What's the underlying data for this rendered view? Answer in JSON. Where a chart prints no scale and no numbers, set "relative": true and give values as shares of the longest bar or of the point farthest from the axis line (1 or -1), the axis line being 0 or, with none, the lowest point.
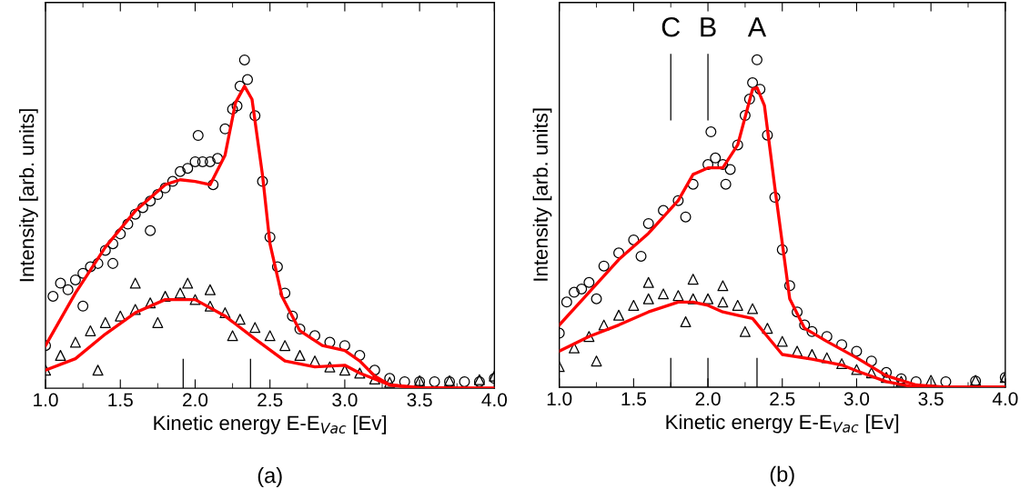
{
  "chart_data": [
    {
      "type": "scatter",
      "title": "(a)",
      "xlabel": "Kinetic energy E-E$_{Vac}$ [Ev]",
      "ylabel": "Intensity [arb. units]",
      "relative": true,
      "xlim": [
        1.0,
        4.0
      ],
      "xticks": [
        {
          "value": 1.0,
          "label": "1.0"
        },
        {
          "value": 1.5,
          "label": "1.5"
        },
        {
          "value": 2.0,
          "label": "2.0"
        },
        {
          "value": 2.5,
          "label": "2.5"
        },
        {
          "value": 3.0,
          "label": "3.0"
        },
        {
          "value": 3.5,
          "label": "3.5"
        },
        {
          "value": 4.0,
          "label": "4.0"
        }
      ],
      "tick_labels": "x",
      "grid": false,
      "legend": false,
      "series": [
        {
          "type": "scatter",
          "marker": "circle",
          "color": "#000000",
          "x": [
            1.0,
            1.05,
            1.1,
            1.15,
            1.2,
            1.25,
            1.3,
            1.35,
            1.4,
            1.45,
            1.5,
            1.55,
            1.6,
            1.65,
            1.7,
            1.75,
            1.8,
            1.85,
            1.9,
            1.95,
            2.0,
            2.05,
            2.1,
            2.15,
            2.2,
            2.25,
            2.3,
            2.33,
            2.35,
            2.4,
            2.45,
            2.5,
            2.55,
            2.6,
            2.65,
            2.7,
            2.8,
            2.9,
            3.0,
            3.1,
            3.2,
            3.3,
            3.4,
            3.5,
            3.6,
            3.7,
            3.8,
            3.9,
            4.0,
            2.02,
            1.25,
            1.45,
            1.7,
            2.12,
            2.28
          ],
          "values": [
            0.13,
            0.28,
            0.32,
            0.3,
            0.33,
            0.35,
            0.37,
            0.38,
            0.42,
            0.44,
            0.47,
            0.5,
            0.53,
            0.55,
            0.57,
            0.59,
            0.61,
            0.63,
            0.66,
            0.67,
            0.69,
            0.69,
            0.69,
            0.7,
            0.79,
            0.85,
            0.92,
            1.0,
            0.94,
            0.83,
            0.63,
            0.46,
            0.37,
            0.29,
            0.22,
            0.18,
            0.16,
            0.14,
            0.13,
            0.1,
            0.055,
            0.03,
            0.02,
            0.02,
            0.02,
            0.02,
            0.02,
            0.02,
            0.03,
            0.77,
            0.25,
            0.38,
            0.48,
            0.62,
            0.86
          ]
        },
        {
          "type": "scatter",
          "marker": "triangle",
          "color": "#000000",
          "x": [
            1.0,
            1.1,
            1.2,
            1.3,
            1.4,
            1.5,
            1.6,
            1.7,
            1.8,
            1.9,
            2.0,
            2.1,
            2.2,
            2.3,
            2.4,
            2.5,
            2.6,
            2.7,
            2.8,
            2.9,
            3.0,
            3.1,
            3.2,
            3.3,
            3.5,
            3.7,
            3.9,
            4.0,
            1.6,
            1.95,
            2.1,
            1.35,
            1.75,
            2.25
          ],
          "values": [
            0.055,
            0.1,
            0.14,
            0.175,
            0.2,
            0.22,
            0.24,
            0.26,
            0.28,
            0.29,
            0.27,
            0.25,
            0.23,
            0.21,
            0.185,
            0.16,
            0.13,
            0.1,
            0.083,
            0.065,
            0.055,
            0.046,
            0.028,
            0.018,
            0.023,
            0.023,
            0.026,
            0.037,
            0.32,
            0.32,
            0.3,
            0.055,
            0.2,
            0.16
          ]
        },
        {
          "type": "line",
          "marker": "none",
          "color": "#ff0000",
          "x": [
            1.0,
            1.2,
            1.4,
            1.6,
            1.8,
            1.9,
            2.0,
            2.1,
            2.2,
            2.27,
            2.33,
            2.38,
            2.45,
            2.5,
            2.58,
            2.7,
            2.85,
            3.0,
            3.1,
            3.2,
            3.3,
            3.5,
            4.0
          ],
          "values": [
            0.13,
            0.29,
            0.43,
            0.54,
            0.62,
            0.635,
            0.63,
            0.62,
            0.71,
            0.87,
            0.92,
            0.88,
            0.65,
            0.44,
            0.28,
            0.175,
            0.13,
            0.115,
            0.083,
            0.037,
            0.01,
            0.002,
            0.0
          ]
        },
        {
          "type": "line",
          "marker": "none",
          "color": "#ff0000",
          "x": [
            1.0,
            1.2,
            1.4,
            1.6,
            1.8,
            1.9,
            2.0,
            2.2,
            2.4,
            2.6,
            2.8,
            3.0,
            3.1,
            3.3,
            3.5,
            4.0
          ],
          "values": [
            0.055,
            0.09,
            0.165,
            0.23,
            0.27,
            0.27,
            0.27,
            0.22,
            0.15,
            0.083,
            0.065,
            0.07,
            0.046,
            0.01,
            0.0,
            0.0
          ]
        }
      ],
      "ref_lines": [
        {
          "axis": "x",
          "value": 1.92,
          "color": "#000000"
        },
        {
          "axis": "x",
          "value": 2.37,
          "color": "#000000"
        }
      ]
    },
    {
      "type": "scatter",
      "title": "(b)",
      "xlabel": "Kinetic energy E-E$_{Vac}$ [Ev]",
      "ylabel": "Intensity [arb. units]",
      "relative": true,
      "xlim": [
        1.0,
        4.0
      ],
      "xticks": [
        {
          "value": 1.0,
          "label": "1.0"
        },
        {
          "value": 1.5,
          "label": "1.5"
        },
        {
          "value": 2.0,
          "label": "2.0"
        },
        {
          "value": 2.5,
          "label": "2.5"
        },
        {
          "value": 3.0,
          "label": "3.0"
        },
        {
          "value": 3.5,
          "label": "3.5"
        },
        {
          "value": 4.0,
          "label": "4.0"
        }
      ],
      "tick_labels": "x",
      "grid": false,
      "legend": false,
      "series": [
        {
          "type": "scatter",
          "marker": "circle",
          "color": "#000000",
          "x": [
            1.0,
            1.05,
            1.1,
            1.15,
            1.2,
            1.3,
            1.4,
            1.5,
            1.6,
            1.7,
            1.8,
            1.9,
            2.0,
            2.05,
            2.1,
            2.15,
            2.2,
            2.25,
            2.3,
            2.33,
            2.35,
            2.4,
            2.45,
            2.5,
            2.55,
            2.6,
            2.65,
            2.7,
            2.8,
            2.9,
            3.0,
            3.1,
            3.2,
            3.3,
            3.4,
            3.6,
            3.8,
            4.0,
            2.02,
            1.25,
            1.55,
            1.85,
            2.12,
            2.28
          ],
          "values": [
            0.165,
            0.26,
            0.29,
            0.3,
            0.32,
            0.37,
            0.41,
            0.45,
            0.5,
            0.54,
            0.57,
            0.62,
            0.68,
            0.7,
            0.68,
            0.665,
            0.74,
            0.83,
            0.93,
            1.0,
            0.91,
            0.77,
            0.58,
            0.42,
            0.31,
            0.23,
            0.19,
            0.17,
            0.155,
            0.13,
            0.11,
            0.08,
            0.045,
            0.026,
            0.017,
            0.017,
            0.019,
            0.03,
            0.78,
            0.27,
            0.4,
            0.52,
            0.62,
            0.88
          ]
        },
        {
          "type": "scatter",
          "marker": "triangle",
          "color": "#000000",
          "x": [
            1.0,
            1.1,
            1.2,
            1.3,
            1.4,
            1.5,
            1.6,
            1.7,
            1.8,
            1.9,
            2.0,
            2.1,
            2.2,
            2.3,
            2.4,
            2.5,
            2.6,
            2.7,
            2.8,
            2.9,
            3.0,
            3.1,
            3.2,
            3.3,
            3.5,
            3.8,
            4.0,
            1.6,
            1.9,
            2.1,
            1.25,
            1.85,
            2.25
          ],
          "values": [
            0.063,
            0.12,
            0.155,
            0.19,
            0.22,
            0.25,
            0.27,
            0.285,
            0.28,
            0.27,
            0.27,
            0.26,
            0.25,
            0.24,
            0.18,
            0.14,
            0.11,
            0.1,
            0.09,
            0.072,
            0.054,
            0.044,
            0.03,
            0.018,
            0.021,
            0.021,
            0.03,
            0.32,
            0.33,
            0.31,
            0.08,
            0.2,
            0.17
          ]
        },
        {
          "type": "line",
          "marker": "none",
          "color": "#ff0000",
          "x": [
            1.0,
            1.2,
            1.4,
            1.6,
            1.8,
            1.9,
            2.0,
            2.1,
            2.2,
            2.3,
            2.33,
            2.38,
            2.45,
            2.55,
            2.65,
            2.8,
            3.0,
            3.2,
            3.4,
            3.6,
            4.0
          ],
          "values": [
            0.19,
            0.29,
            0.39,
            0.47,
            0.57,
            0.65,
            0.67,
            0.67,
            0.74,
            0.91,
            0.915,
            0.86,
            0.61,
            0.27,
            0.18,
            0.14,
            0.09,
            0.035,
            0.007,
            0.0,
            0.0
          ]
        },
        {
          "type": "line",
          "marker": "none",
          "color": "#ff0000",
          "x": [
            1.0,
            1.2,
            1.4,
            1.6,
            1.8,
            1.9,
            2.0,
            2.1,
            2.2,
            2.3,
            2.4,
            2.5,
            2.7,
            2.9,
            3.0,
            3.2,
            3.4,
            4.0
          ],
          "values": [
            0.11,
            0.155,
            0.19,
            0.23,
            0.26,
            0.26,
            0.25,
            0.23,
            0.22,
            0.21,
            0.155,
            0.1,
            0.086,
            0.068,
            0.05,
            0.017,
            0.0,
            0.0
          ]
        }
      ],
      "ref_lines": [
        {
          "axis": "x",
          "value": 1.75,
          "color": "#000000",
          "label": "C",
          "line_style": "solid"
        },
        {
          "axis": "x",
          "value": 2.0,
          "color": "#000000",
          "label": "B",
          "line_style": "solid"
        },
        {
          "axis": "x",
          "value": 2.33,
          "color": "#000000"
        }
      ],
      "annotations": [
        {
          "text": "A",
          "x": 2.33,
          "y": 1.0
        }
      ]
    }
  ]
}
